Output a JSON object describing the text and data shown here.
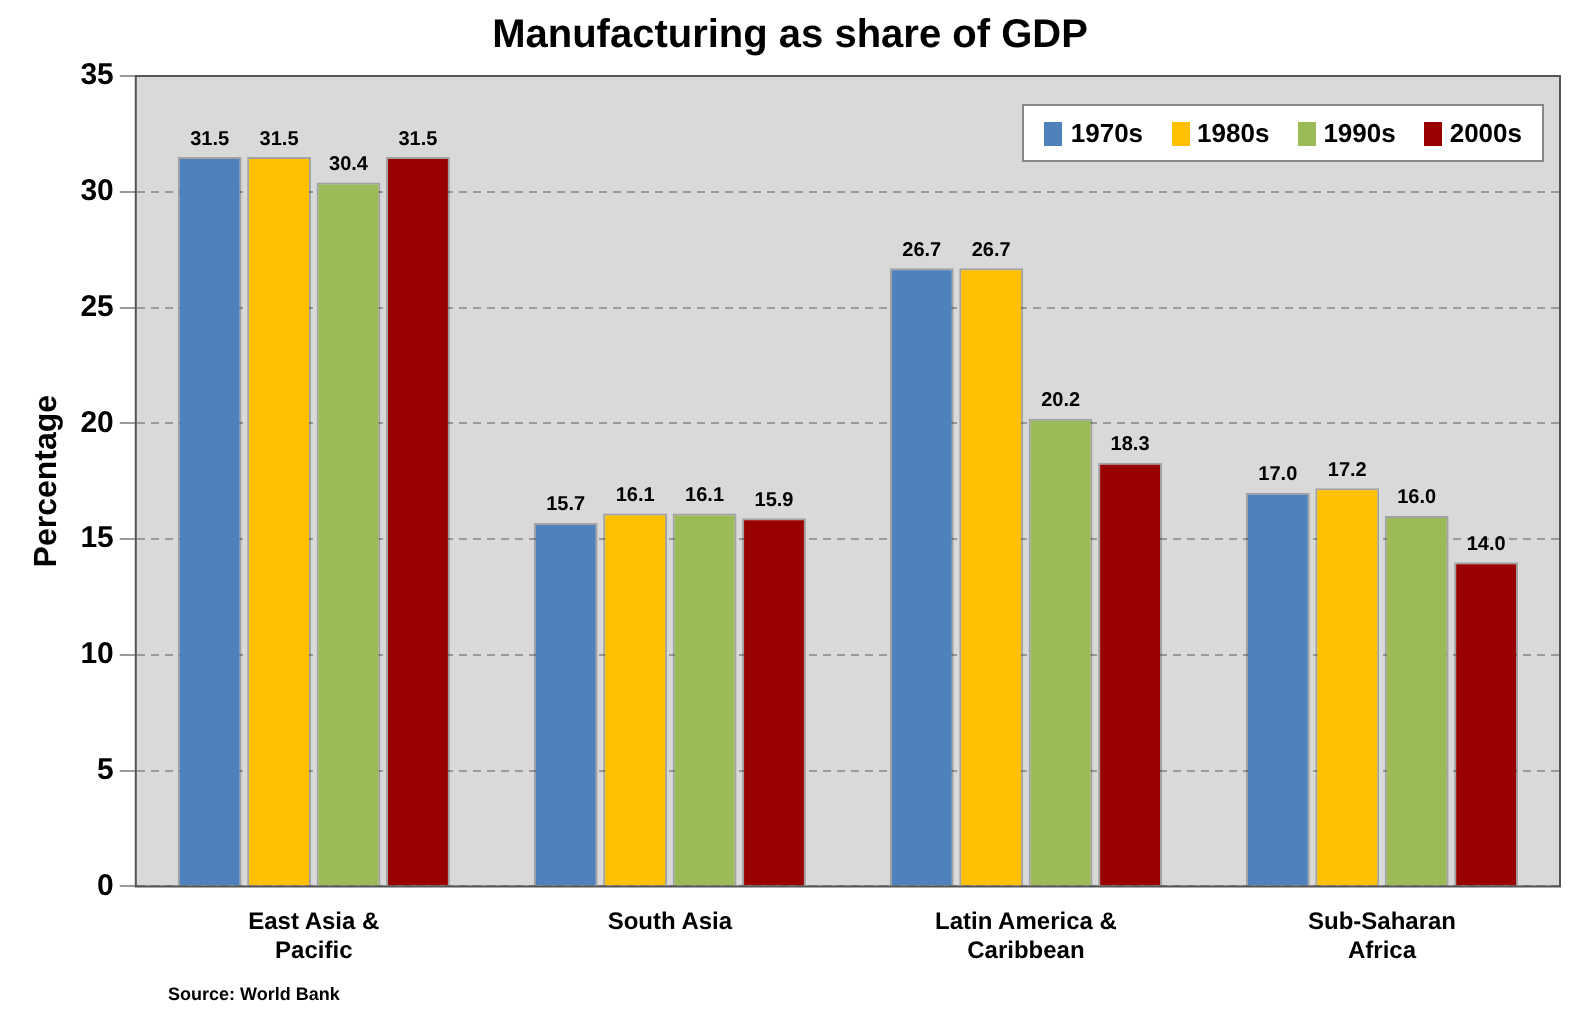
{
  "chart_data": {
    "type": "bar",
    "title": "Manufacturing as share of GDP",
    "ylabel": "Percentage",
    "categories": [
      "East Asia & Pacific",
      "South Asia",
      "Latin America & Caribbean",
      "Sub-Saharan Africa"
    ],
    "series": [
      {
        "name": "1970s",
        "color": "#4f81bd",
        "values": [
          31.5,
          15.7,
          26.7,
          17.0
        ],
        "value_labels": [
          "31.5",
          "15.7",
          "26.7",
          "17.0"
        ]
      },
      {
        "name": "1980s",
        "color": "#ffc000",
        "values": [
          31.5,
          16.1,
          26.7,
          17.2
        ],
        "value_labels": [
          "31.5",
          "16.1",
          "26.7",
          "17.2"
        ]
      },
      {
        "name": "1990s",
        "color": "#9bbb59",
        "values": [
          30.4,
          16.1,
          20.2,
          16.0
        ],
        "value_labels": [
          "30.4",
          "16.1",
          "20.2",
          "16.0"
        ]
      },
      {
        "name": "2000s",
        "color": "#990000",
        "values": [
          31.5,
          15.9,
          18.3,
          14.0
        ],
        "value_labels": [
          "31.5",
          "15.9",
          "18.3",
          "14.0"
        ]
      }
    ],
    "ylim": [
      0,
      35
    ],
    "yticks": [
      0,
      5,
      10,
      15,
      20,
      25,
      30,
      35
    ],
    "grid": "y",
    "legend": "top right",
    "annotations": [
      "Source: World Bank"
    ]
  }
}
